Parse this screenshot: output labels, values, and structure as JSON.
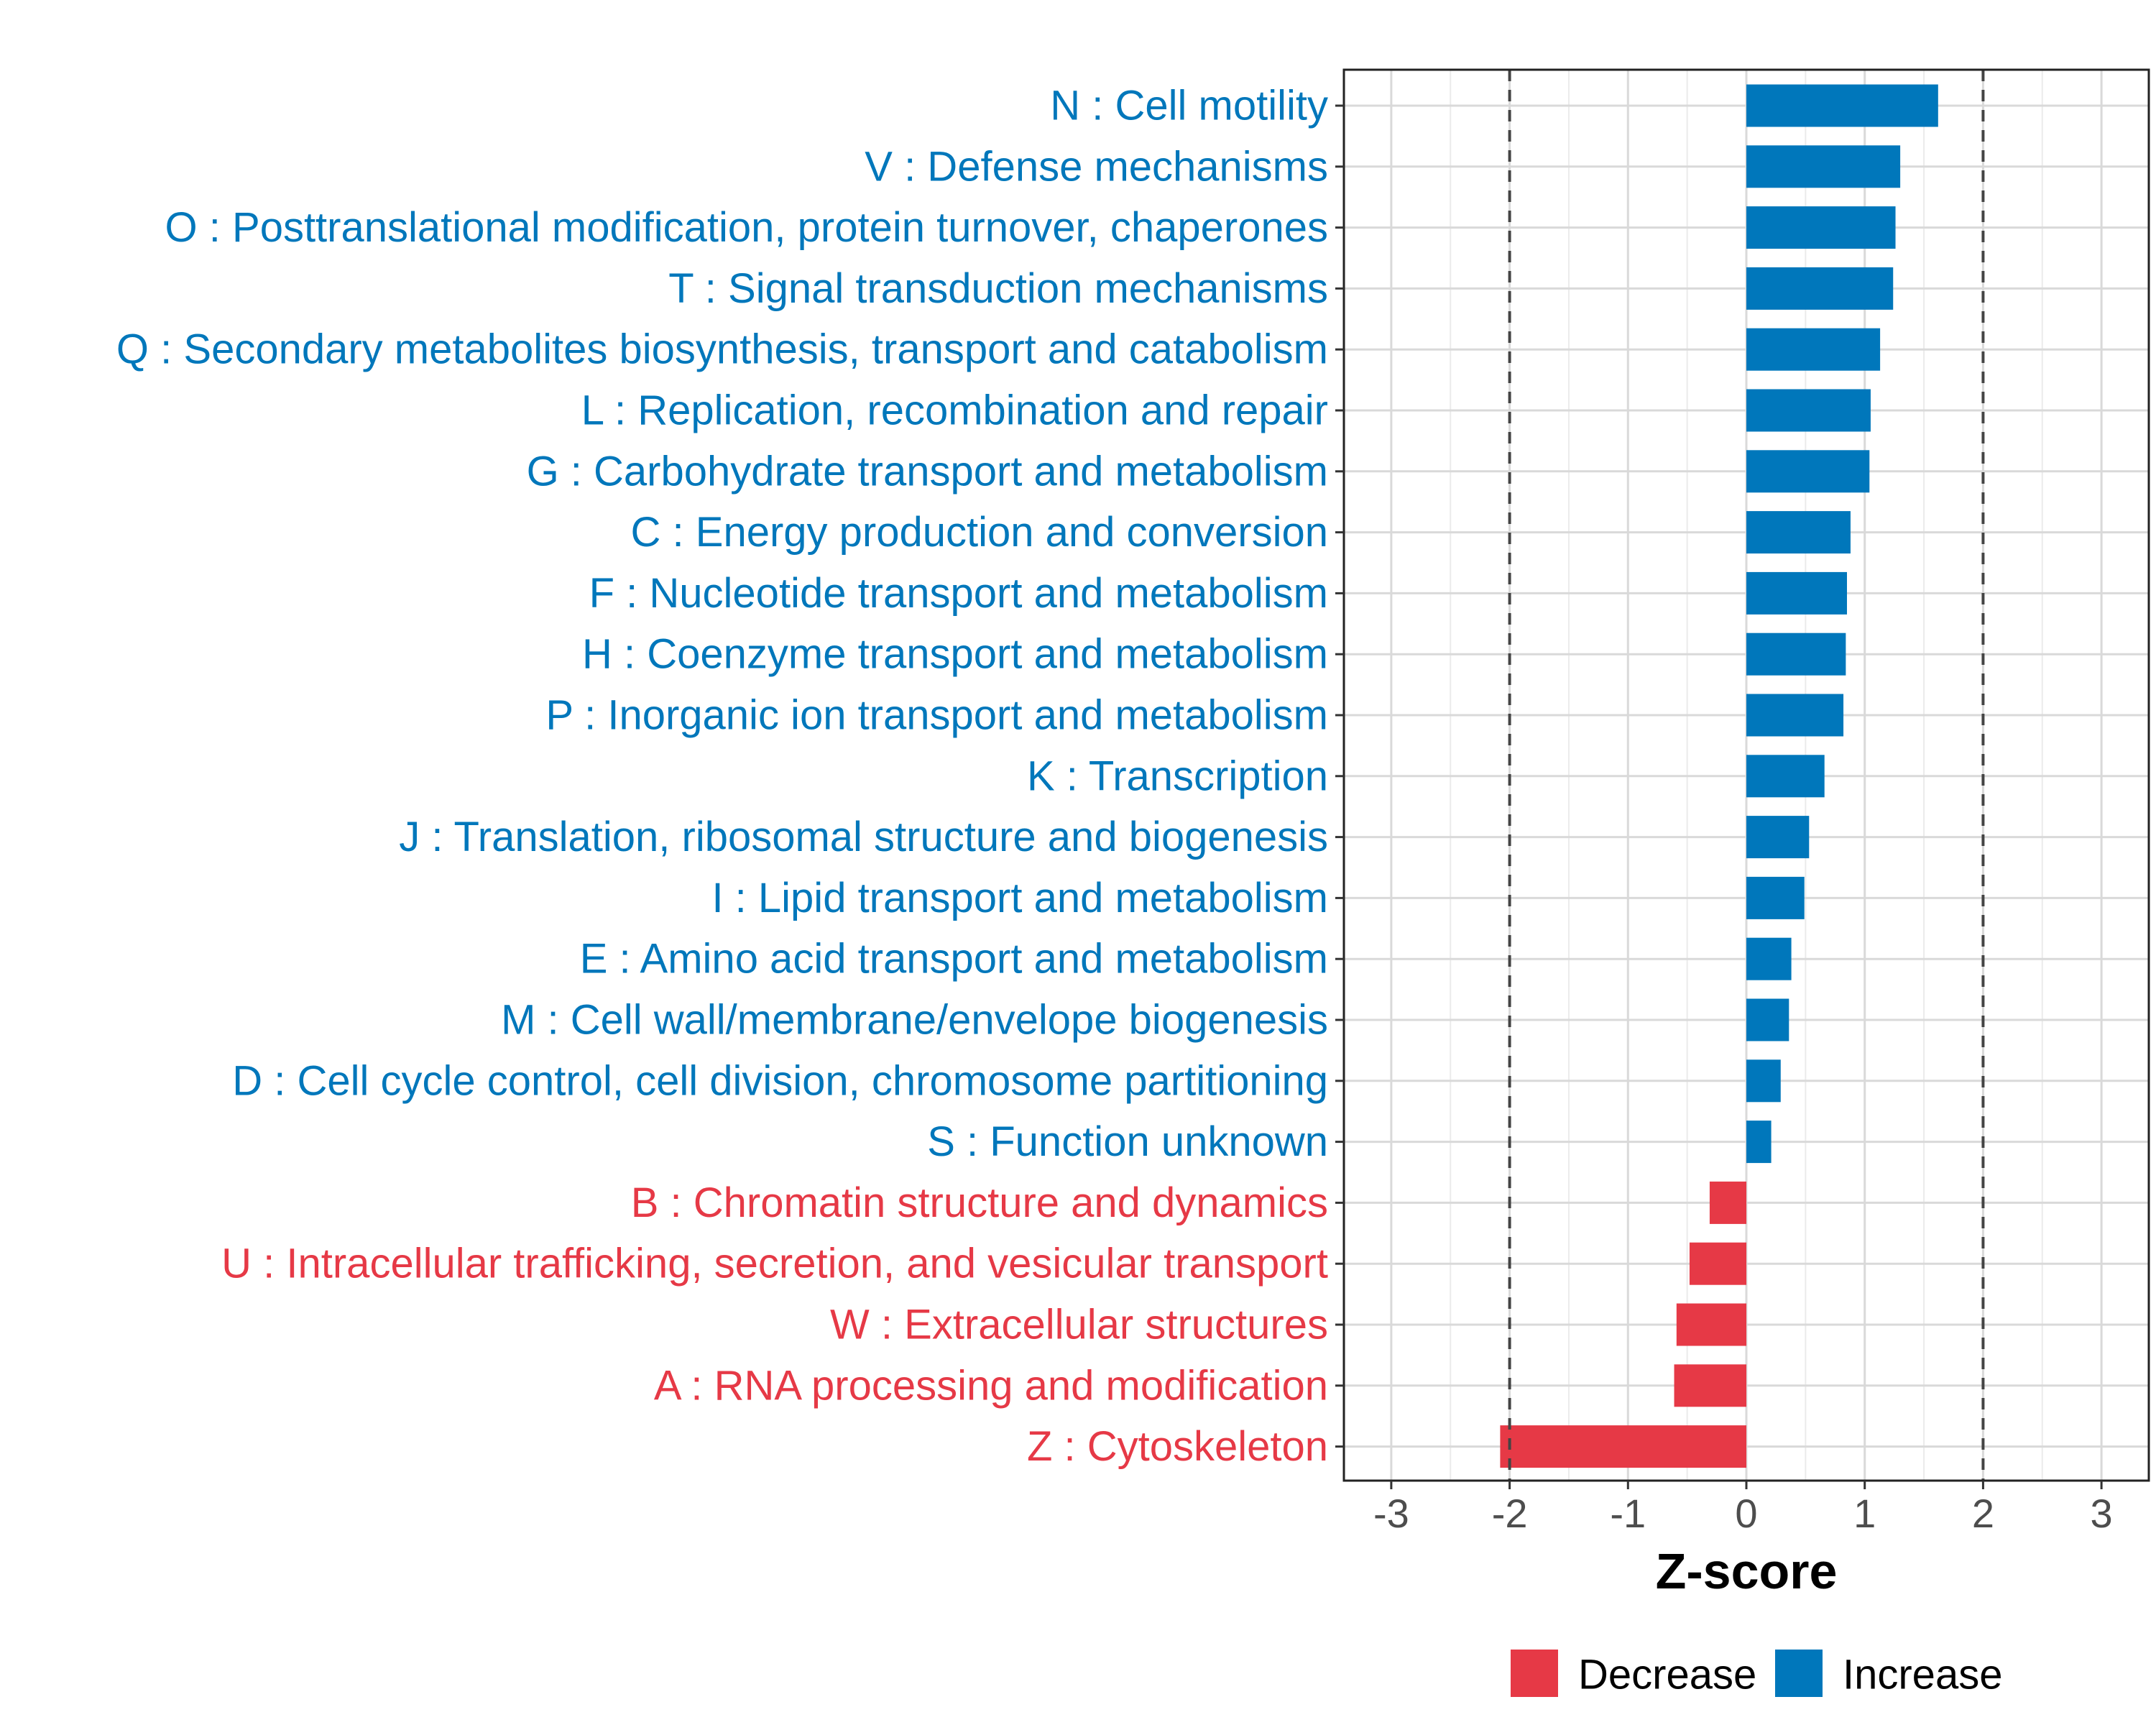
{
  "chart_data": {
    "type": "bar",
    "orientation": "horizontal",
    "xlabel": "Z-score",
    "xlim": [
      -3.4,
      3.4
    ],
    "x_ticks": [
      -3,
      -2,
      -1,
      0,
      1,
      2,
      3
    ],
    "x_tick_labels": [
      "-3",
      "-2",
      "-1",
      "0",
      "1",
      "2",
      "3"
    ],
    "reference_lines": [
      -2,
      2
    ],
    "grid": true,
    "colors": {
      "Increase": "#0077bb",
      "Decrease": "#e63946",
      "reference_line": "#444444"
    },
    "legend": {
      "position": "bottom",
      "items": [
        {
          "label": "Decrease",
          "key": "Decrease"
        },
        {
          "label": "Increase",
          "key": "Increase"
        }
      ]
    },
    "categories": [
      "N : Cell motility",
      "V : Defense mechanisms",
      "O : Posttranslational modification, protein turnover, chaperones",
      "T : Signal transduction mechanisms",
      "Q : Secondary metabolites biosynthesis, transport and catabolism",
      "L : Replication, recombination and repair",
      "G : Carbohydrate transport and metabolism",
      "C : Energy production and conversion",
      "F : Nucleotide transport and metabolism",
      "H : Coenzyme transport and metabolism",
      "P : Inorganic ion transport and metabolism",
      "K : Transcription",
      "J : Translation, ribosomal structure and biogenesis",
      "I : Lipid transport and metabolism",
      "E : Amino acid transport and metabolism",
      "M : Cell wall/membrane/envelope biogenesis",
      "D : Cell cycle control, cell division, chromosome partitioning",
      "S : Function unknown",
      "B : Chromatin structure and dynamics",
      "U : Intracellular trafficking, secretion, and vesicular transport",
      "W : Extracellular structures",
      "A : RNA processing and modification",
      "Z : Cytoskeleton"
    ],
    "values": [
      1.62,
      1.3,
      1.26,
      1.24,
      1.13,
      1.05,
      1.04,
      0.88,
      0.85,
      0.84,
      0.82,
      0.66,
      0.53,
      0.49,
      0.38,
      0.36,
      0.29,
      0.21,
      -0.31,
      -0.48,
      -0.59,
      -0.61,
      -2.08
    ],
    "groups": [
      "Increase",
      "Increase",
      "Increase",
      "Increase",
      "Increase",
      "Increase",
      "Increase",
      "Increase",
      "Increase",
      "Increase",
      "Increase",
      "Increase",
      "Increase",
      "Increase",
      "Increase",
      "Increase",
      "Increase",
      "Increase",
      "Decrease",
      "Decrease",
      "Decrease",
      "Decrease",
      "Decrease"
    ]
  }
}
